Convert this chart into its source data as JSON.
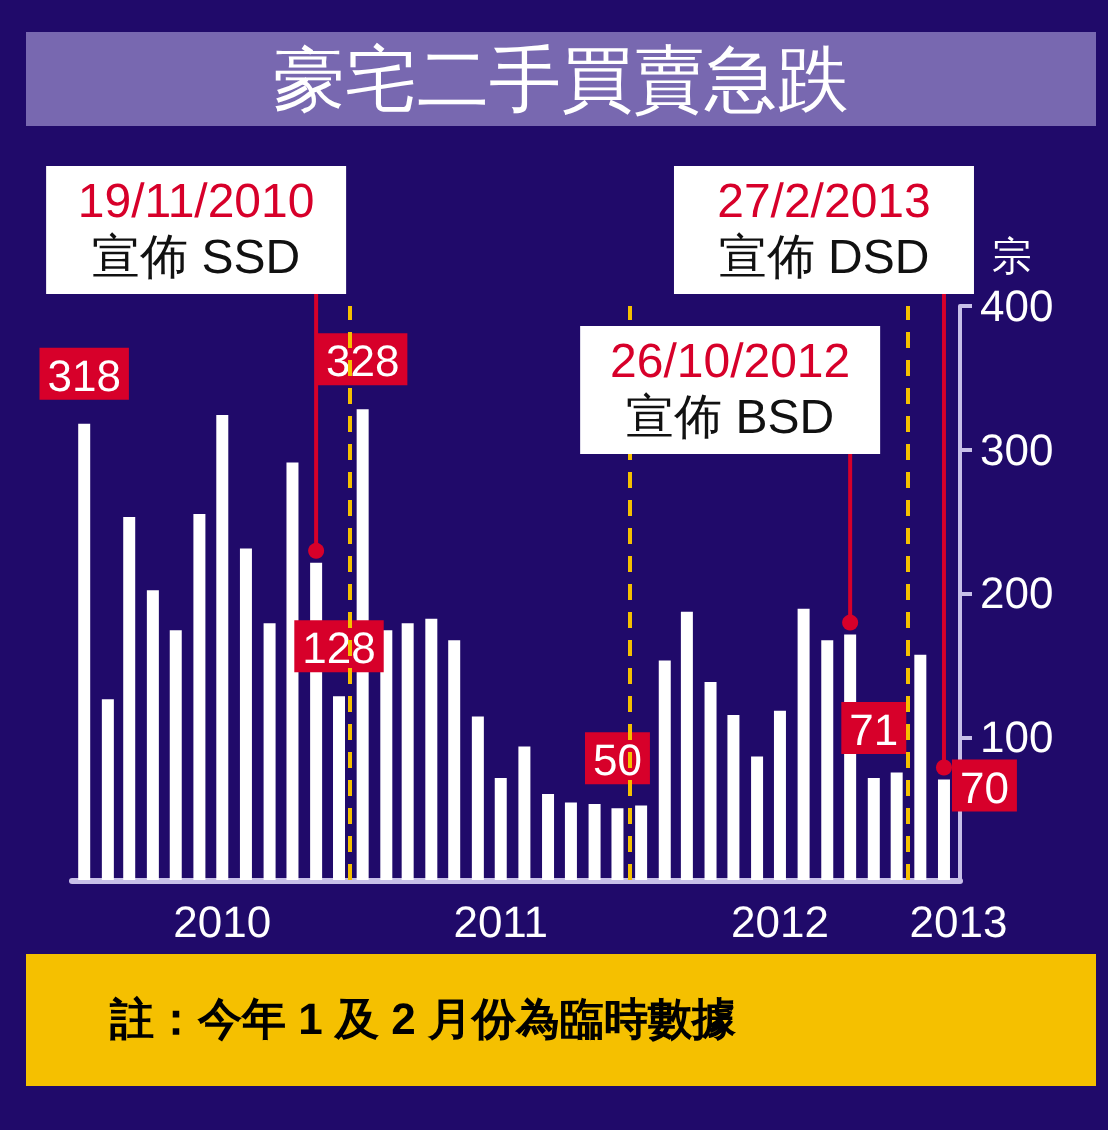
{
  "chart_data": {
    "type": "bar",
    "title": "豪宅二手買賣急跌",
    "ylabel": "宗",
    "x": [
      "2010-01",
      "2010-02",
      "2010-03",
      "2010-04",
      "2010-05",
      "2010-06",
      "2010-07",
      "2010-08",
      "2010-09",
      "2010-10",
      "2010-11",
      "2010-12",
      "2011-01",
      "2011-02",
      "2011-03",
      "2011-04",
      "2011-05",
      "2011-06",
      "2011-07",
      "2011-08",
      "2011-09",
      "2011-10",
      "2011-11",
      "2011-12",
      "2012-01",
      "2012-02",
      "2012-03",
      "2012-04",
      "2012-05",
      "2012-06",
      "2012-07",
      "2012-08",
      "2012-09",
      "2012-10",
      "2012-11",
      "2012-12",
      "2013-01",
      "2013-02"
    ],
    "values": [
      318,
      126,
      253,
      202,
      174,
      255,
      324,
      231,
      179,
      291,
      221,
      128,
      328,
      174,
      179,
      182,
      167,
      114,
      71,
      93,
      60,
      54,
      53,
      50,
      52,
      153,
      187,
      138,
      115,
      86,
      118,
      189,
      167,
      171,
      71,
      75,
      157,
      70
    ],
    "value_labels": [
      "318",
      null,
      null,
      null,
      null,
      null,
      null,
      null,
      null,
      null,
      null,
      "128",
      "328",
      null,
      null,
      null,
      null,
      null,
      null,
      null,
      null,
      null,
      null,
      "50",
      null,
      null,
      null,
      null,
      null,
      null,
      null,
      null,
      null,
      null,
      "71",
      null,
      null,
      "70"
    ],
    "color": "#ffffff",
    "xlim": [
      "2009-12-16",
      "2013-02-22"
    ],
    "xticks": [
      {
        "value": "2010-07-01",
        "label": "2010"
      },
      {
        "value": "2011-07-01",
        "label": "2011"
      },
      {
        "value": "2012-07-01",
        "label": "2012"
      },
      {
        "value": "2013-02-20",
        "label": "2013"
      }
    ],
    "ylim": [
      0,
      400
    ],
    "yticks": [
      100,
      200,
      300,
      400
    ],
    "ref_lines": [
      {
        "axis": "x",
        "value": "2010-12-16",
        "color": "#f5c000",
        "line_style": "dashed"
      },
      {
        "axis": "x",
        "value": "2011-12-16",
        "color": "#f5c000",
        "line_style": "dashed"
      },
      {
        "axis": "x",
        "value": "2012-12-16",
        "color": "#f5c000",
        "line_style": "dashed"
      }
    ],
    "annotations": [
      {
        "text": "19/11/2010\n宣佈 SSD",
        "x": "2010-11",
        "y": 221
      },
      {
        "text": "26/10/2012\n宣佈 BSD",
        "x": "2012-10",
        "y": 171
      },
      {
        "text": "27/2/2013\n宣佈 DSD",
        "x": "2013-02",
        "y": 70
      },
      "註：今年 1 及 2 月份為臨時數據"
    ]
  }
}
